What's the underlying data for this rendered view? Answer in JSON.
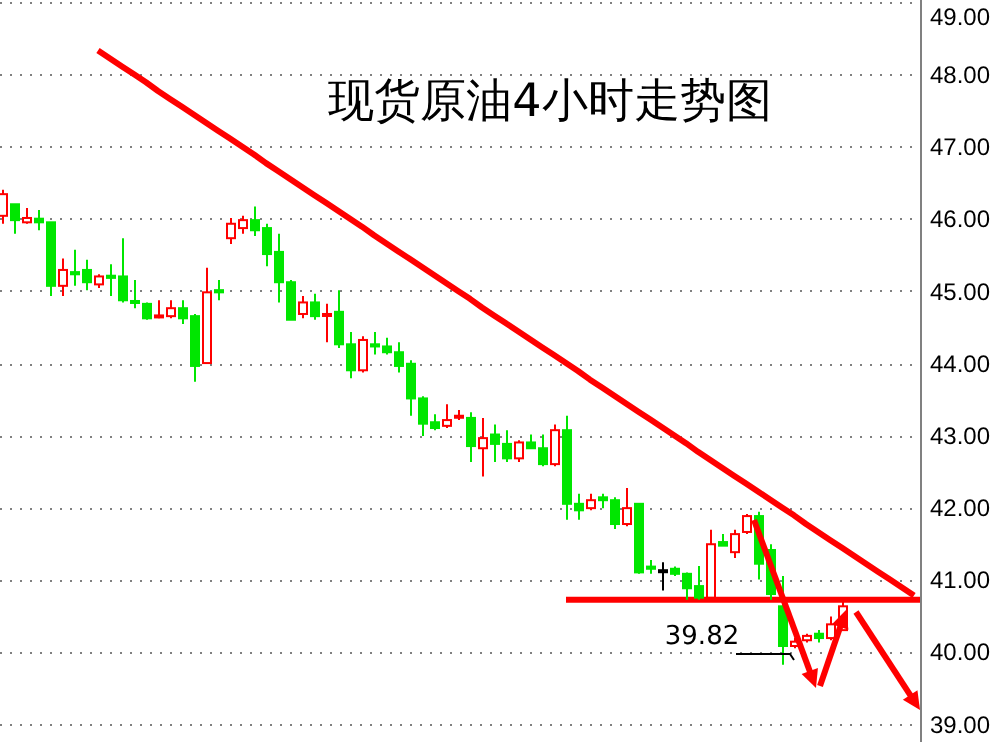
{
  "chart_data": {
    "type": "candlestick",
    "title": "现货原油4小时走势图",
    "categories": [
      null,
      null,
      null,
      null,
      null,
      null,
      null,
      null,
      null,
      null,
      null,
      null,
      null,
      null,
      null,
      null,
      null,
      null,
      null,
      null,
      null,
      null,
      null,
      null,
      null,
      null,
      null,
      null,
      null,
      null,
      null,
      null,
      null,
      null,
      null,
      null,
      null,
      null,
      null,
      null,
      null,
      null,
      null,
      null,
      null,
      null,
      null,
      null,
      null,
      null,
      null,
      null,
      null,
      null,
      null,
      null,
      null,
      null,
      null,
      null,
      null,
      null,
      null,
      null,
      null,
      null,
      null,
      null,
      null,
      null,
      null,
      null,
      null,
      null,
      null,
      null,
      null
    ],
    "ohlc": [
      [
        46.04,
        46.4,
        45.93,
        46.34
      ],
      [
        46.2,
        46.2,
        45.79,
        45.98
      ],
      [
        45.95,
        46.15,
        45.93,
        46.01
      ],
      [
        46.0,
        46.12,
        45.84,
        45.95
      ],
      [
        45.95,
        45.95,
        44.93,
        45.07
      ],
      [
        45.07,
        45.45,
        44.93,
        45.29
      ],
      [
        45.26,
        45.57,
        45.07,
        45.23
      ],
      [
        45.29,
        45.43,
        45.01,
        45.12
      ],
      [
        45.09,
        45.23,
        45.04,
        45.2
      ],
      [
        45.21,
        45.37,
        44.93,
        45.18
      ],
      [
        45.2,
        45.73,
        44.84,
        44.87
      ],
      [
        44.86,
        45.15,
        44.76,
        44.84
      ],
      [
        44.82,
        44.84,
        44.6,
        44.62
      ],
      [
        44.64,
        44.87,
        44.62,
        44.66
      ],
      [
        44.65,
        44.87,
        44.62,
        44.76
      ],
      [
        44.76,
        44.87,
        44.54,
        44.62
      ],
      [
        44.65,
        44.68,
        43.74,
        43.96
      ],
      [
        44.0,
        45.32,
        44.0,
        44.98
      ],
      [
        45.01,
        45.15,
        44.87,
        44.98
      ],
      [
        45.73,
        46.01,
        45.65,
        45.93
      ],
      [
        45.87,
        46.04,
        45.79,
        45.98
      ],
      [
        45.98,
        46.17,
        45.76,
        45.84
      ],
      [
        45.87,
        45.93,
        45.34,
        45.51
      ],
      [
        45.54,
        45.79,
        44.84,
        45.12
      ],
      [
        45.12,
        45.15,
        44.6,
        44.6
      ],
      [
        44.68,
        44.93,
        44.62,
        44.84
      ],
      [
        44.84,
        44.96,
        44.6,
        44.65
      ],
      [
        44.66,
        44.82,
        44.29,
        44.68
      ],
      [
        44.71,
        45.01,
        44.21,
        44.26
      ],
      [
        44.26,
        44.43,
        43.79,
        43.9
      ],
      [
        43.9,
        44.37,
        43.87,
        44.32
      ],
      [
        44.26,
        44.43,
        44.12,
        44.23
      ],
      [
        44.23,
        44.35,
        44.12,
        44.15
      ],
      [
        44.15,
        44.29,
        43.87,
        43.96
      ],
      [
        43.99,
        44.04,
        43.27,
        43.51
      ],
      [
        43.51,
        43.54,
        42.99,
        43.16
      ],
      [
        43.18,
        43.29,
        43.07,
        43.1
      ],
      [
        43.13,
        43.43,
        43.1,
        43.21
      ],
      [
        43.25,
        43.35,
        43.21,
        43.27
      ],
      [
        43.24,
        43.32,
        42.63,
        42.85
      ],
      [
        42.82,
        43.24,
        42.43,
        42.96
      ],
      [
        43.01,
        43.15,
        42.63,
        42.88
      ],
      [
        42.88,
        43.07,
        42.63,
        42.68
      ],
      [
        42.68,
        42.93,
        42.63,
        42.9
      ],
      [
        42.9,
        43.01,
        42.82,
        42.82
      ],
      [
        42.82,
        43.01,
        42.57,
        42.6
      ],
      [
        42.6,
        43.15,
        42.57,
        43.07
      ],
      [
        43.07,
        43.27,
        41.83,
        42.05
      ],
      [
        42.05,
        42.19,
        41.83,
        41.96
      ],
      [
        41.99,
        42.19,
        41.96,
        42.1
      ],
      [
        42.14,
        42.19,
        41.99,
        42.1
      ],
      [
        42.1,
        42.14,
        41.7,
        41.77
      ],
      [
        41.77,
        42.27,
        41.74,
        41.99
      ],
      [
        42.05,
        42.05,
        41.08,
        41.1
      ],
      [
        41.18,
        41.27,
        41.08,
        41.15
      ],
      [
        41.13,
        41.24,
        40.85,
        41.13
      ],
      [
        41.15,
        41.18,
        41.05,
        41.08
      ],
      [
        41.08,
        41.1,
        40.72,
        40.88
      ],
      [
        40.91,
        41.19,
        40.72,
        40.75
      ],
      [
        40.75,
        41.69,
        40.72,
        41.49
      ],
      [
        41.52,
        41.63,
        41.47,
        41.47
      ],
      [
        41.38,
        41.69,
        41.3,
        41.63
      ],
      [
        41.66,
        41.91,
        41.63,
        41.88
      ],
      [
        41.88,
        41.94,
        41.0,
        41.22
      ],
      [
        41.41,
        41.49,
        40.72,
        40.8
      ],
      [
        40.63,
        41.05,
        39.82,
        40.08
      ],
      [
        40.08,
        40.19,
        40.05,
        40.14
      ],
      [
        40.16,
        40.25,
        40.13,
        40.22
      ],
      [
        40.25,
        40.3,
        40.13,
        40.19
      ],
      [
        40.19,
        40.49,
        40.16,
        40.38
      ],
      [
        40.3,
        40.72,
        40.3,
        40.63
      ],
      null,
      null,
      null,
      null,
      null,
      null
    ],
    "series": [
      {
        "type": "line",
        "color": "#ff0000",
        "values": [
          null,
          null,
          null,
          null,
          null,
          null,
          null,
          null,
          48.33,
          48.22,
          48.11,
          48.0,
          47.89,
          47.77,
          47.66,
          47.55,
          47.44,
          47.33,
          47.22,
          47.11,
          47.0,
          46.89,
          46.77,
          46.66,
          46.55,
          46.44,
          46.33,
          46.22,
          46.11,
          46.0,
          45.89,
          45.77,
          45.66,
          45.55,
          45.44,
          45.33,
          45.22,
          45.11,
          45.0,
          44.89,
          44.77,
          44.66,
          44.55,
          44.44,
          44.33,
          44.22,
          44.11,
          44.0,
          43.89,
          43.77,
          43.66,
          43.55,
          43.44,
          43.33,
          43.22,
          43.11,
          43.0,
          42.89,
          42.77,
          42.66,
          42.55,
          42.44,
          42.33,
          42.22,
          42.11,
          42.0,
          41.89,
          41.77,
          41.66,
          41.55,
          41.44,
          41.33,
          41.22,
          41.11,
          41.0,
          40.89,
          40.78
        ]
      }
    ],
    "colors": [
      "#ff0000",
      "#00e600",
      "#ff0000",
      "#00e600",
      "#00e600",
      "#ff0000",
      "#00e600",
      "#00e600",
      "#ff0000",
      "#00e600",
      "#00e600",
      "#00e600",
      "#00e600",
      "#ff0000",
      "#ff0000",
      "#00e600",
      "#00e600",
      "#ff0000",
      "#00e600",
      "#ff0000",
      "#ff0000",
      "#00e600",
      "#00e600",
      "#00e600",
      "#00e600",
      "#ff0000",
      "#00e600",
      "#ff0000",
      "#00e600",
      "#00e600",
      "#ff0000",
      "#00e600",
      "#00e600",
      "#00e600",
      "#00e600",
      "#00e600",
      "#00e600",
      "#ff0000",
      "#ff0000",
      "#00e600",
      "#ff0000",
      "#00e600",
      "#00e600",
      "#ff0000",
      "#00e600",
      "#00e600",
      "#ff0000",
      "#00e600",
      "#00e600",
      "#ff0000",
      "#00e600",
      "#00e600",
      "#ff0000",
      "#00e600",
      "#00e600",
      "#000000",
      "#00e600",
      "#00e600",
      "#00e600",
      "#ff0000",
      "#00e600",
      "#ff0000",
      "#ff0000",
      "#00e600",
      "#00e600",
      "#00e600",
      "#ff0000",
      "#ff0000",
      "#00e600",
      "#ff0000",
      "#ff0000",
      null,
      null,
      null,
      null,
      null,
      null
    ],
    "ylim": [
      38.75,
      49.03
    ],
    "yticks": [
      {
        "value": 39,
        "label": "39.00"
      },
      {
        "value": 40,
        "label": "40.00"
      },
      {
        "value": 41,
        "label": "41.00"
      },
      {
        "value": 42,
        "label": "42.00"
      },
      {
        "value": 43,
        "label": "43.00"
      },
      {
        "value": 44,
        "label": "44.00"
      },
      {
        "value": 45,
        "label": "45.00"
      },
      {
        "value": 46,
        "label": "46.00"
      },
      {
        "value": 47,
        "label": "47.00"
      },
      {
        "value": 48,
        "label": "48.00"
      },
      {
        "value": 49,
        "label": "49.00"
      }
    ],
    "grid": "y",
    "tick_labels": "y",
    "ref_lines": [
      {
        "axis": "y",
        "value": 40.72,
        "color": "#ff0000"
      }
    ],
    "annotations": [
      "39.82"
    ]
  }
}
